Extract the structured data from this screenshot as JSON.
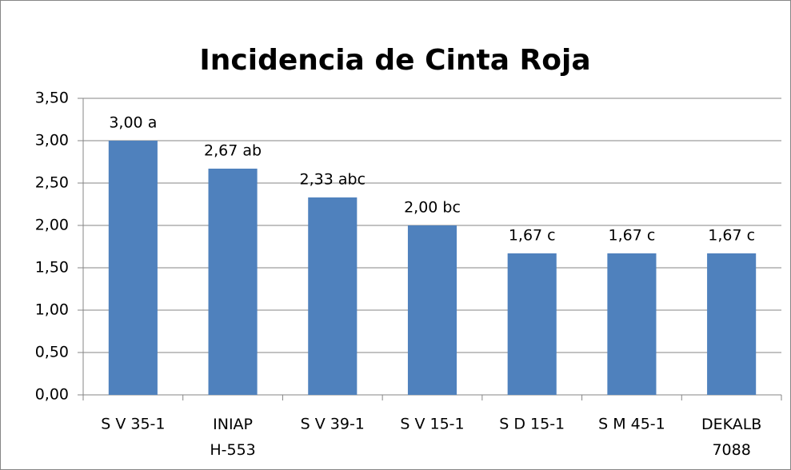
{
  "chart_data": {
    "type": "bar",
    "title": "Incidencia de Cinta Roja",
    "categories": [
      "S V 35-1",
      "INIAP\nH-553",
      "S V 39-1",
      "S V 15-1",
      "S D 15-1",
      "S M 45-1",
      "DEKALB\n7088"
    ],
    "values": [
      3.0,
      2.67,
      2.33,
      2.0,
      1.67,
      1.67,
      1.67
    ],
    "value_labels": [
      "3,00 a",
      "2,67 ab",
      "2,33 abc",
      "2,00 bc",
      "1,67 c",
      "1,67 c",
      "1,67 c"
    ],
    "color": "#4f81bd",
    "ylim": [
      0,
      3.5
    ],
    "yticks": [
      {
        "value": 0,
        "label": "0,00"
      },
      {
        "value": 0.5,
        "label": "0,50"
      },
      {
        "value": 1,
        "label": "1,00"
      },
      {
        "value": 1.5,
        "label": "1,50"
      },
      {
        "value": 2,
        "label": "2,00"
      },
      {
        "value": 2.5,
        "label": "2,50"
      },
      {
        "value": 3,
        "label": "3,00"
      },
      {
        "value": 3.5,
        "label": "3,50"
      }
    ],
    "grid": true
  }
}
